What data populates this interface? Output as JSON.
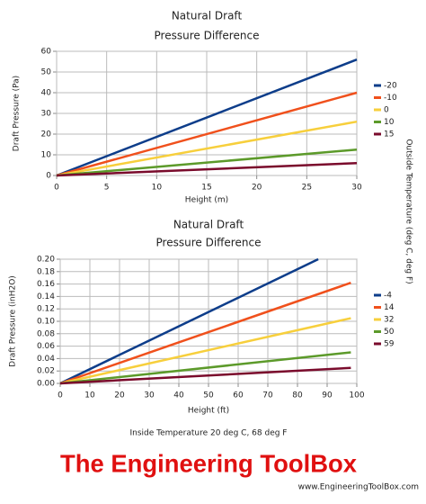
{
  "chart_data": [
    {
      "type": "line",
      "title": "Natural Draft",
      "subtitle": "Pressure Difference",
      "x_label": "Height (m)",
      "y_label": "Draft Pressure (Pa)",
      "xlim": [
        0,
        30
      ],
      "xticks": [
        0,
        5,
        10,
        15,
        20,
        25,
        30
      ],
      "ylim": [
        0,
        60
      ],
      "yticks": [
        0,
        10,
        20,
        30,
        40,
        50,
        60
      ],
      "grid": true,
      "series": [
        {
          "name": "-20",
          "color": "#0d3d8a",
          "x": [
            0,
            30
          ],
          "values": [
            0,
            56
          ]
        },
        {
          "name": "-10",
          "color": "#f0501c",
          "x": [
            0,
            30
          ],
          "values": [
            0,
            40
          ]
        },
        {
          "name": "0",
          "color": "#f7cf3c",
          "x": [
            0,
            30
          ],
          "values": [
            0,
            26
          ]
        },
        {
          "name": "10",
          "color": "#5c9a2a",
          "x": [
            0,
            30
          ],
          "values": [
            0,
            12.5
          ]
        },
        {
          "name": "15",
          "color": "#7a0b2c",
          "x": [
            0,
            30
          ],
          "values": [
            0,
            6
          ]
        }
      ]
    },
    {
      "type": "line",
      "title": "Natural Draft",
      "subtitle": "Pressure Difference",
      "x_label": "Height (ft)",
      "y_label": "Draft Pressure (inH2O)",
      "xlim": [
        0,
        100
      ],
      "xticks": [
        0,
        10,
        20,
        30,
        40,
        50,
        60,
        70,
        80,
        90,
        100
      ],
      "ylim": [
        0,
        0.2
      ],
      "yticks": [
        {
          "value": 0,
          "label": "0.00"
        },
        {
          "value": 0.02,
          "label": "0.02"
        },
        {
          "value": 0.04,
          "label": "0.04"
        },
        {
          "value": 0.06,
          "label": "0.06"
        },
        {
          "value": 0.08,
          "label": "0.08"
        },
        {
          "value": 0.1,
          "label": "0.10"
        },
        {
          "value": 0.12,
          "label": "0.12"
        },
        {
          "value": 0.14,
          "label": "0.14"
        },
        {
          "value": 0.16,
          "label": "0.16"
        },
        {
          "value": 0.18,
          "label": "0.18"
        },
        {
          "value": 0.2,
          "label": "0.20"
        }
      ],
      "grid": true,
      "series": [
        {
          "name": "-4",
          "color": "#0d3d8a",
          "x": [
            0,
            87
          ],
          "values": [
            0,
            0.2
          ]
        },
        {
          "name": "14",
          "color": "#f0501c",
          "x": [
            0,
            98
          ],
          "values": [
            0,
            0.162
          ]
        },
        {
          "name": "32",
          "color": "#f7cf3c",
          "x": [
            0,
            98
          ],
          "values": [
            0,
            0.105
          ]
        },
        {
          "name": "50",
          "color": "#5c9a2a",
          "x": [
            0,
            98
          ],
          "values": [
            0,
            0.05
          ]
        },
        {
          "name": "59",
          "color": "#7a0b2c",
          "x": [
            0,
            98
          ],
          "values": [
            0,
            0.025
          ]
        }
      ]
    }
  ],
  "side_label": "Outside Temperature (deg C, deg F)",
  "footer": "Inside Temperature 20 deg C, 68 deg F",
  "logo": "The Engineering ToolBox",
  "url": "www.EngineeringToolBox.com"
}
